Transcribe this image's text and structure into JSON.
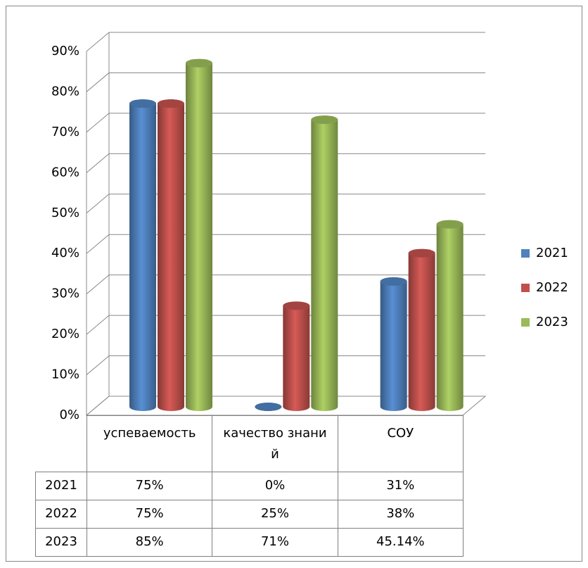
{
  "chart_data": {
    "type": "bar3d",
    "categories": [
      "успеваемость",
      "качество знаний",
      "СОУ"
    ],
    "series": [
      {
        "name": "2021",
        "color": "#4f81bd",
        "values": [
          75,
          0,
          31
        ],
        "value_labels": [
          "75%",
          "0%",
          "31%"
        ]
      },
      {
        "name": "2022",
        "color": "#c0504d",
        "values": [
          75,
          25,
          38
        ],
        "value_labels": [
          "75%",
          "25%",
          "38%"
        ]
      },
      {
        "name": "2023",
        "color": "#9bbb59",
        "values": [
          85,
          71,
          45.14
        ],
        "value_labels": [
          "85%",
          "71%",
          "45.14%"
        ]
      }
    ],
    "ylim": [
      0,
      90
    ],
    "yticks": [
      {
        "value": 0,
        "label": "0%"
      },
      {
        "value": 10,
        "label": "10%"
      },
      {
        "value": 20,
        "label": "20%"
      },
      {
        "value": 30,
        "label": "30%"
      },
      {
        "value": 40,
        "label": "40%"
      },
      {
        "value": 50,
        "label": "50%"
      },
      {
        "value": 60,
        "label": "60%"
      },
      {
        "value": 70,
        "label": "70%"
      },
      {
        "value": 80,
        "label": "80%"
      },
      {
        "value": 90,
        "label": "90%"
      }
    ],
    "grid": true,
    "legend": "right"
  }
}
